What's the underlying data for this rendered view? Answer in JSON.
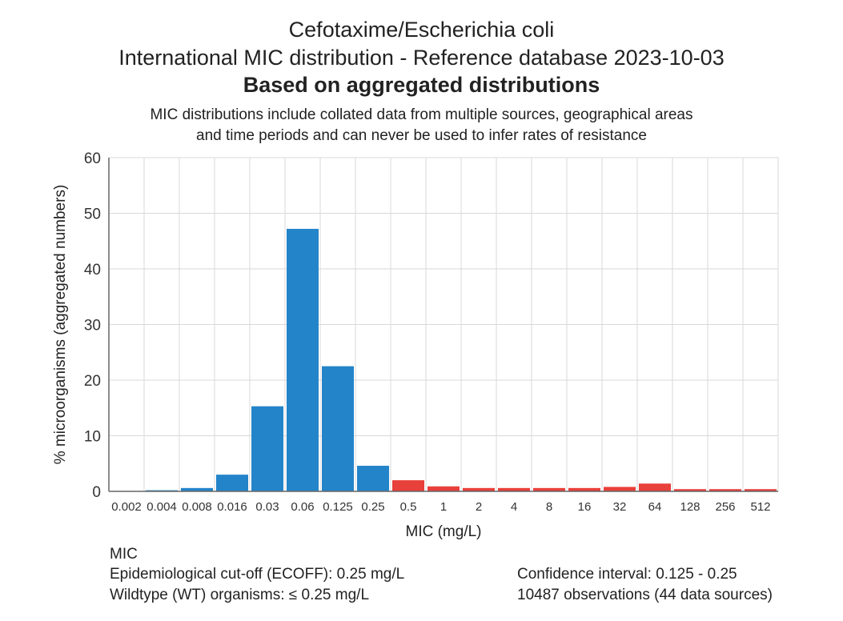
{
  "header": {
    "title": "Cefotaxime/Escherichia coli",
    "subtitle": "International MIC distribution - Reference database 2023-10-03",
    "heading": "Based on aggregated distributions",
    "note_line1": "MIC distributions include collated data from multiple sources, geographical areas",
    "note_line2": "and time periods and can never be used to infer rates of resistance"
  },
  "chart_data": {
    "type": "bar",
    "categories": [
      "0.002",
      "0.004",
      "0.008",
      "0.016",
      "0.03",
      "0.06",
      "0.125",
      "0.25",
      "0.5",
      "1",
      "2",
      "4",
      "8",
      "16",
      "32",
      "64",
      "128",
      "256",
      "512"
    ],
    "values": [
      0.0,
      0.2,
      0.6,
      3.0,
      15.3,
      47.2,
      22.5,
      4.6,
      2.0,
      0.9,
      0.6,
      0.6,
      0.6,
      0.6,
      0.8,
      1.4,
      0.4,
      0.4,
      0.4
    ],
    "status": [
      "wt",
      "wt",
      "wt",
      "wt",
      "wt",
      "wt",
      "wt",
      "wt",
      "nwt",
      "nwt",
      "nwt",
      "nwt",
      "nwt",
      "nwt",
      "nwt",
      "nwt",
      "nwt",
      "nwt",
      "nwt"
    ],
    "xlabel": "MIC (mg/L)",
    "ylabel": "% microorganisms (aggregated numbers)",
    "ylim": [
      0,
      60
    ],
    "yticks": [
      0,
      10,
      20,
      30,
      40,
      50,
      60
    ],
    "grid": true,
    "colors": {
      "wildtype": "#2484c9",
      "non_wildtype": "#e8403a",
      "grid": "#d9d9d9",
      "axis": "#666666"
    }
  },
  "footer": {
    "section_label": "MIC",
    "ecoff": "Epidemiological cut-off (ECOFF): 0.25 mg/L",
    "wildtype": "Wildtype (WT) organisms: ≤ 0.25 mg/L",
    "confidence": "Confidence interval: 0.125 - 0.25",
    "observations": "10487 observations (44 data sources)"
  }
}
